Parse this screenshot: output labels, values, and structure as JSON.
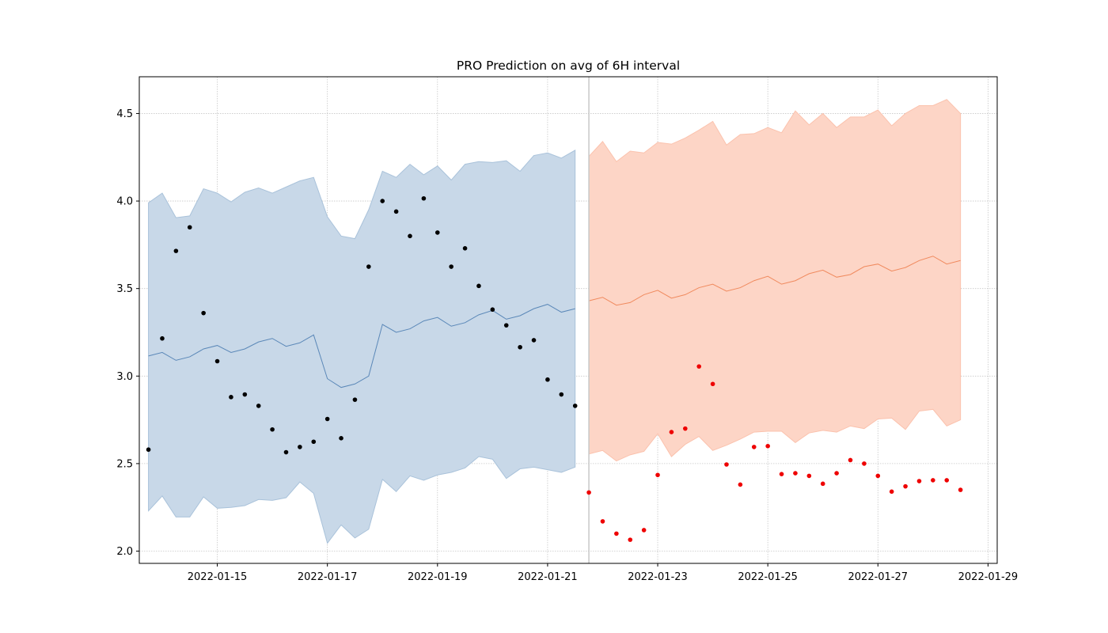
{
  "chart_data": {
    "type": "line",
    "title": "PRO Prediction on avg of 6H interval",
    "xlabel": "",
    "ylabel": "",
    "x_axis": "date",
    "xlim": [
      "2022-01-13 14:00",
      "2022-01-29 04:00"
    ],
    "ylim": [
      1.93,
      4.71
    ],
    "x_ticks": [
      "2022-01-15",
      "2022-01-17",
      "2022-01-19",
      "2022-01-21",
      "2022-01-23",
      "2022-01-25",
      "2022-01-27",
      "2022-01-29"
    ],
    "y_ticks": [
      "2.0",
      "2.5",
      "3.0",
      "3.5",
      "4.0",
      "4.5"
    ],
    "grid": true,
    "legend": "none",
    "split_line_x": "2022-01-21 18:00",
    "colors": {
      "history_band": "#c8d8e8",
      "history_band_edge": "#a9c2da",
      "history_line": "#5b88b8",
      "history_points": "#000000",
      "forecast_band": "#fdd5c6",
      "forecast_band_edge": "#fbc2ad",
      "forecast_line": "#f08a5e",
      "forecast_points": "#ee0000",
      "split_line": "#c8c8c8"
    },
    "series": [
      {
        "kind": "history",
        "start": "2022-01-13 18:00",
        "step_hours": 6,
        "prediction": [
          3.115,
          3.135,
          3.09,
          3.11,
          3.155,
          3.175,
          3.135,
          3.155,
          3.195,
          3.215,
          3.17,
          3.19,
          3.235,
          2.985,
          2.935,
          2.955,
          3.0,
          3.295,
          3.25,
          3.27,
          3.315,
          3.335,
          3.285,
          3.305,
          3.35,
          3.375,
          3.325,
          3.345,
          3.385,
          3.41,
          3.365,
          3.385
        ],
        "upper": [
          3.99,
          4.045,
          3.905,
          3.915,
          4.07,
          4.045,
          3.995,
          4.05,
          4.075,
          4.045,
          4.08,
          4.115,
          4.135,
          3.91,
          3.8,
          3.785,
          3.95,
          4.17,
          4.135,
          4.21,
          4.15,
          4.2,
          4.12,
          4.21,
          4.225,
          4.22,
          4.23,
          4.17,
          4.26,
          4.275,
          4.245,
          4.29
        ],
        "lower": [
          2.23,
          2.315,
          2.195,
          2.195,
          2.31,
          2.245,
          2.25,
          2.26,
          2.295,
          2.29,
          2.305,
          2.395,
          2.33,
          2.045,
          2.15,
          2.075,
          2.125,
          2.41,
          2.34,
          2.43,
          2.405,
          2.435,
          2.45,
          2.475,
          2.54,
          2.525,
          2.415,
          2.47,
          2.48,
          2.465,
          2.45,
          2.48
        ],
        "actual": [
          2.58,
          3.215,
          3.715,
          3.85,
          3.36,
          3.085,
          2.88,
          2.895,
          2.83,
          2.695,
          2.565,
          2.595,
          2.625,
          2.755,
          2.645,
          2.865,
          3.625,
          4.0,
          3.94,
          3.8,
          4.015,
          3.82,
          3.625,
          3.73,
          3.515,
          3.38,
          3.29,
          3.165,
          3.205,
          2.98,
          2.895,
          2.83
        ]
      },
      {
        "kind": "forecast",
        "start": "2022-01-21 18:00",
        "step_hours": 6,
        "prediction": [
          3.43,
          3.45,
          3.405,
          3.42,
          3.465,
          3.49,
          3.445,
          3.465,
          3.505,
          3.525,
          3.485,
          3.505,
          3.545,
          3.57,
          3.525,
          3.545,
          3.585,
          3.605,
          3.565,
          3.58,
          3.625,
          3.64,
          3.6,
          3.62,
          3.66,
          3.685,
          3.64,
          3.66
        ],
        "upper": [
          4.255,
          4.34,
          4.225,
          4.285,
          4.275,
          4.335,
          4.325,
          4.36,
          4.405,
          4.455,
          4.32,
          4.38,
          4.385,
          4.42,
          4.39,
          4.515,
          4.435,
          4.5,
          4.42,
          4.48,
          4.48,
          4.52,
          4.43,
          4.5,
          4.545,
          4.545,
          4.58,
          4.5
        ],
        "lower": [
          2.555,
          2.575,
          2.515,
          2.55,
          2.57,
          2.67,
          2.54,
          2.61,
          2.655,
          2.575,
          2.605,
          2.64,
          2.68,
          2.685,
          2.685,
          2.62,
          2.675,
          2.69,
          2.68,
          2.715,
          2.7,
          2.755,
          2.76,
          2.695,
          2.8,
          2.81,
          2.715,
          2.75
        ],
        "actual": [
          2.335,
          2.17,
          2.1,
          2.065,
          2.12,
          2.435,
          2.68,
          2.7,
          3.055,
          2.955,
          2.495,
          2.38,
          2.595,
          2.6,
          2.44,
          2.445,
          2.43,
          2.385,
          2.445,
          2.52,
          2.5,
          2.43,
          2.34,
          2.37,
          2.4,
          2.405,
          2.405,
          2.35
        ]
      }
    ]
  }
}
